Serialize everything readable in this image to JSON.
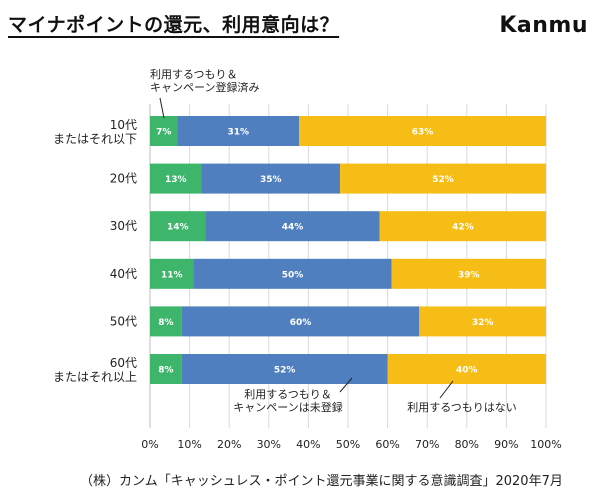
{
  "page": {
    "title": "マイナポイントの還元、利用意向は？",
    "brand": "Kanmu",
    "source": "（株）カンム「キャッシュレス・ポイント還元事業に関する意識調査」2020年7月"
  },
  "chart_data": {
    "type": "bar",
    "orientation": "horizontal-stacked-100",
    "categories": [
      [
        "10代",
        "またはそれ以下"
      ],
      [
        "20代"
      ],
      [
        "30代"
      ],
      [
        "40代"
      ],
      [
        "50代"
      ],
      [
        "60代",
        "またはそれ以上"
      ]
    ],
    "series": [
      {
        "name": "利用するつもり＆キャンペーン登録済み",
        "legend_lines": [
          "利用するつもり＆",
          "キャンペーン登録済み"
        ],
        "color": "#3db56a",
        "values": [
          7,
          13,
          14,
          11,
          8,
          8
        ]
      },
      {
        "name": "利用するつもり＆キャンペーンは未登録",
        "legend_lines": [
          "利用するつもり＆",
          "キャンペーンは未登録"
        ],
        "color": "#4f7fbf",
        "values": [
          31,
          35,
          44,
          50,
          60,
          52
        ]
      },
      {
        "name": "利用するつもりはない",
        "legend_lines": [
          "利用するつもりはない"
        ],
        "color": "#f6bd16",
        "values": [
          63,
          52,
          42,
          39,
          32,
          40
        ]
      }
    ],
    "value_suffix": "%",
    "x_ticks": [
      "0%",
      "10%",
      "20%",
      "30%",
      "40%",
      "50%",
      "60%",
      "70%",
      "80%",
      "90%",
      "100%"
    ],
    "xlim": [
      0,
      100
    ],
    "grid": true
  }
}
